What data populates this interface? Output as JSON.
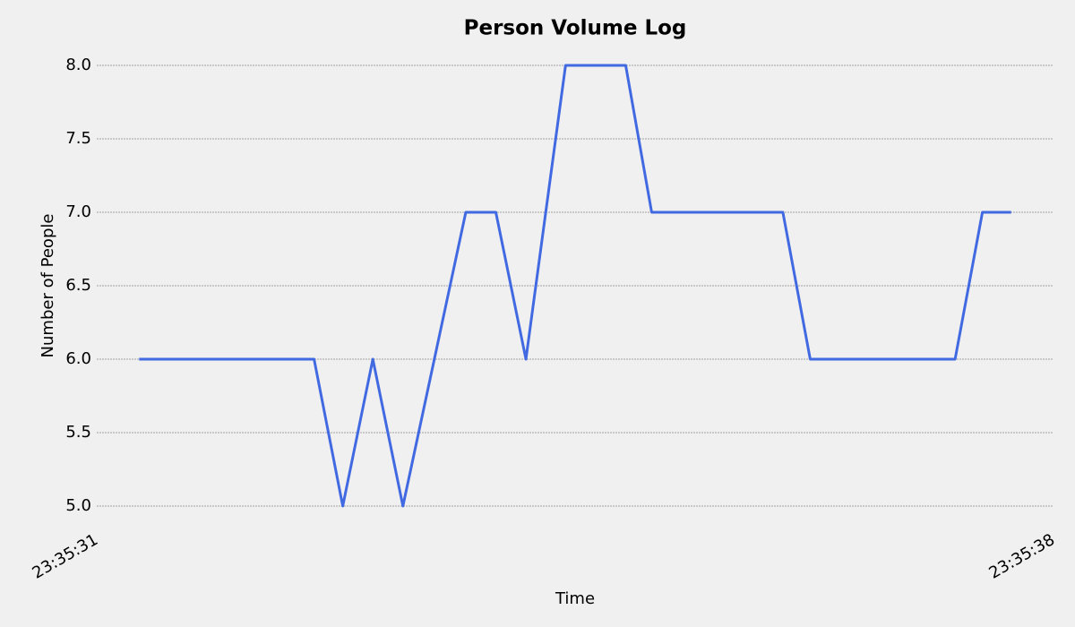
{
  "chart_data": {
    "type": "line",
    "title": "Person Volume Log",
    "x_label": "Time",
    "y_label": "Number of People",
    "x": [
      "23:35:31.31",
      "23:35:32.59",
      "23:35:32.80",
      "23:35:33.02",
      "23:35:33.24",
      "23:35:33.70",
      "23:35:33.92",
      "23:35:34.14",
      "23:35:34.43",
      "23:35:34.87",
      "23:35:35.06",
      "23:35:36.02",
      "23:35:36.22",
      "23:35:37.28",
      "23:35:37.48",
      "23:35:37.69"
    ],
    "series": [
      {
        "name": "Number of People",
        "color": "#4169e1",
        "values": [
          6,
          6,
          5,
          6,
          5,
          7,
          7,
          6,
          8,
          8,
          7,
          7,
          6,
          6,
          7,
          7
        ]
      }
    ],
    "xlim": [
      "23:35:31",
      "23:35:38"
    ],
    "xticks": [
      "23:35:31",
      "23:35:38"
    ],
    "ylim": [
      4.85,
      8.15
    ],
    "yticks": [
      {
        "value": 5,
        "label": "5.0"
      },
      {
        "value": 5.5,
        "label": "5.5"
      },
      {
        "value": 6,
        "label": "6.0"
      },
      {
        "value": 6.5,
        "label": "6.5"
      },
      {
        "value": 7,
        "label": "7.0"
      },
      {
        "value": 7.5,
        "label": "7.5"
      },
      {
        "value": 8,
        "label": "8.0"
      }
    ],
    "grid": true
  }
}
